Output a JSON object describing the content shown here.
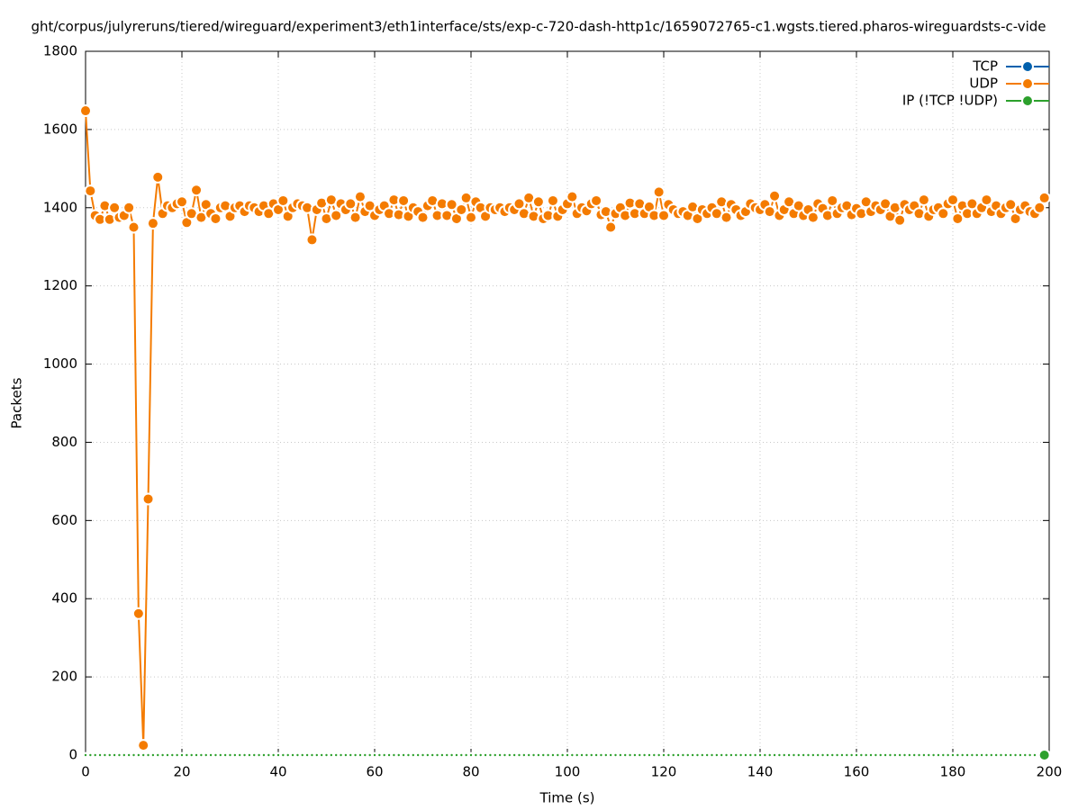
{
  "chart_data": {
    "type": "line",
    "title": "ght/corpus/julyreruns/tiered/wireguard/experiment3/eth1interface/sts/exp-c-720-dash-http1c/1659072765-c1.wgsts.tiered.pharos-wireguardsts-c-vide",
    "x_label": "Time (s)",
    "y_label": "Packets",
    "xlim": [
      0,
      200
    ],
    "ylim": [
      0,
      1800
    ],
    "xticks": [
      0,
      20,
      40,
      60,
      80,
      100,
      120,
      140,
      160,
      180,
      200
    ],
    "yticks": [
      0,
      200,
      400,
      600,
      800,
      1000,
      1200,
      1400,
      1600,
      1800
    ],
    "grid": true,
    "legend": "top-right",
    "x": [
      0,
      1,
      2,
      3,
      4,
      5,
      6,
      7,
      8,
      9,
      10,
      11,
      12,
      13,
      14,
      15,
      16,
      17,
      18,
      19,
      20,
      21,
      22,
      23,
      24,
      25,
      26,
      27,
      28,
      29,
      30,
      31,
      32,
      33,
      34,
      35,
      36,
      37,
      38,
      39,
      40,
      41,
      42,
      43,
      44,
      45,
      46,
      47,
      48,
      49,
      50,
      51,
      52,
      53,
      54,
      55,
      56,
      57,
      58,
      59,
      60,
      61,
      62,
      63,
      64,
      65,
      66,
      67,
      68,
      69,
      70,
      71,
      72,
      73,
      74,
      75,
      76,
      77,
      78,
      79,
      80,
      81,
      82,
      83,
      84,
      85,
      86,
      87,
      88,
      89,
      90,
      91,
      92,
      93,
      94,
      95,
      96,
      97,
      98,
      99,
      100,
      101,
      102,
      103,
      104,
      105,
      106,
      107,
      108,
      109,
      110,
      111,
      112,
      113,
      114,
      115,
      116,
      117,
      118,
      119,
      120,
      121,
      122,
      123,
      124,
      125,
      126,
      127,
      128,
      129,
      130,
      131,
      132,
      133,
      134,
      135,
      136,
      137,
      138,
      139,
      140,
      141,
      142,
      143,
      144,
      145,
      146,
      147,
      148,
      149,
      150,
      151,
      152,
      153,
      154,
      155,
      156,
      157,
      158,
      159,
      160,
      161,
      162,
      163,
      164,
      165,
      166,
      167,
      168,
      169,
      170,
      171,
      172,
      173,
      174,
      175,
      176,
      177,
      178,
      179,
      180,
      181,
      182,
      183,
      184,
      185,
      186,
      187,
      188,
      189,
      190,
      191,
      192,
      193,
      194,
      195,
      196,
      197,
      198,
      199
    ],
    "series": [
      {
        "name": "TCP",
        "color": "#0060ad",
        "values": [
          0,
          0,
          0,
          0,
          0,
          0,
          0,
          0,
          0,
          0,
          0,
          0,
          0,
          0,
          0,
          0,
          0,
          0,
          0,
          0,
          0,
          0,
          0,
          0,
          0,
          0,
          0,
          0,
          0,
          0,
          0,
          0,
          0,
          0,
          0,
          0,
          0,
          0,
          0,
          0,
          0,
          0,
          0,
          0,
          0,
          0,
          0,
          0,
          0,
          0,
          0,
          0,
          0,
          0,
          0,
          0,
          0,
          0,
          0,
          0,
          0,
          0,
          0,
          0,
          0,
          0,
          0,
          0,
          0,
          0,
          0,
          0,
          0,
          0,
          0,
          0,
          0,
          0,
          0,
          0,
          0,
          0,
          0,
          0,
          0,
          0,
          0,
          0,
          0,
          0,
          0,
          0,
          0,
          0,
          0,
          0,
          0,
          0,
          0,
          0,
          0,
          0,
          0,
          0,
          0,
          0,
          0,
          0,
          0,
          0,
          0,
          0,
          0,
          0,
          0,
          0,
          0,
          0,
          0,
          0,
          0,
          0,
          0,
          0,
          0,
          0,
          0,
          0,
          0,
          0,
          0,
          0,
          0,
          0,
          0,
          0,
          0,
          0,
          0,
          0,
          0,
          0,
          0,
          0,
          0,
          0,
          0,
          0,
          0,
          0,
          0,
          0,
          0,
          0,
          0,
          0,
          0,
          0,
          0,
          0,
          0,
          0,
          0,
          0,
          0,
          0,
          0,
          0,
          0,
          0,
          0,
          0,
          0,
          0,
          0,
          0,
          0,
          0,
          0,
          0,
          0,
          0,
          0,
          0,
          0,
          0,
          0,
          0,
          0,
          0,
          0,
          0,
          0,
          0,
          0,
          0,
          0,
          0,
          0,
          0
        ]
      },
      {
        "name": "UDP",
        "color": "#f47b00",
        "values": [
          1648,
          1443,
          1380,
          1370,
          1405,
          1370,
          1400,
          1375,
          1380,
          1400,
          1350,
          362,
          25,
          655,
          1360,
          1478,
          1385,
          1405,
          1400,
          1410,
          1415,
          1362,
          1385,
          1445,
          1375,
          1408,
          1385,
          1372,
          1400,
          1405,
          1378,
          1400,
          1405,
          1390,
          1405,
          1400,
          1390,
          1405,
          1385,
          1410,
          1395,
          1418,
          1378,
          1400,
          1410,
          1405,
          1400,
          1318,
          1395,
          1412,
          1372,
          1420,
          1380,
          1410,
          1395,
          1410,
          1375,
          1428,
          1390,
          1405,
          1380,
          1395,
          1405,
          1385,
          1420,
          1382,
          1418,
          1378,
          1400,
          1390,
          1375,
          1405,
          1418,
          1380,
          1410,
          1380,
          1408,
          1372,
          1395,
          1425,
          1375,
          1415,
          1400,
          1378,
          1400,
          1395,
          1400,
          1390,
          1400,
          1395,
          1410,
          1385,
          1425,
          1378,
          1415,
          1372,
          1380,
          1418,
          1378,
          1395,
          1410,
          1428,
          1385,
          1400,
          1392,
          1410,
          1418,
          1382,
          1390,
          1350,
          1385,
          1400,
          1380,
          1412,
          1385,
          1410,
          1385,
          1402,
          1380,
          1440,
          1380,
          1408,
          1395,
          1385,
          1390,
          1380,
          1402,
          1372,
          1395,
          1385,
          1400,
          1385,
          1415,
          1375,
          1408,
          1395,
          1380,
          1390,
          1410,
          1400,
          1395,
          1408,
          1390,
          1430,
          1380,
          1395,
          1415,
          1385,
          1405,
          1380,
          1395,
          1375,
          1410,
          1398,
          1380,
          1418,
          1385,
          1400,
          1405,
          1382,
          1398,
          1385,
          1415,
          1390,
          1405,
          1395,
          1410,
          1378,
          1400,
          1368,
          1408,
          1395,
          1405,
          1385,
          1420,
          1378,
          1395,
          1400,
          1385,
          1410,
          1420,
          1372,
          1405,
          1385,
          1410,
          1385,
          1400,
          1420,
          1390,
          1405,
          1385,
          1400,
          1408,
          1372,
          1395,
          1405,
          1390,
          1385,
          1400,
          1425
        ]
      },
      {
        "name": "IP (!TCP  !UDP)",
        "color": "#2ca02c",
        "values": [
          0,
          0,
          0,
          0,
          0,
          0,
          0,
          0,
          0,
          0,
          0,
          0,
          0,
          0,
          0,
          0,
          0,
          0,
          0,
          0,
          0,
          0,
          0,
          0,
          0,
          0,
          0,
          0,
          0,
          0,
          0,
          0,
          0,
          0,
          0,
          0,
          0,
          0,
          0,
          0,
          0,
          0,
          0,
          0,
          0,
          0,
          0,
          0,
          0,
          0,
          0,
          0,
          0,
          0,
          0,
          0,
          0,
          0,
          0,
          0,
          0,
          0,
          0,
          0,
          0,
          0,
          0,
          0,
          0,
          0,
          0,
          0,
          0,
          0,
          0,
          0,
          0,
          0,
          0,
          0,
          0,
          0,
          0,
          0,
          0,
          0,
          0,
          0,
          0,
          0,
          0,
          0,
          0,
          0,
          0,
          0,
          0,
          0,
          0,
          0,
          0,
          0,
          0,
          0,
          0,
          0,
          0,
          0,
          0,
          0,
          0,
          0,
          0,
          0,
          0,
          0,
          0,
          0,
          0,
          0,
          0,
          0,
          0,
          0,
          0,
          0,
          0,
          0,
          0,
          0,
          0,
          0,
          0,
          0,
          0,
          0,
          0,
          0,
          0,
          0,
          0,
          0,
          0,
          0,
          0,
          0,
          0,
          0,
          0,
          0,
          0,
          0,
          0,
          0,
          0,
          0,
          0,
          0,
          0,
          0,
          0,
          0,
          0,
          0,
          0,
          0,
          0,
          0,
          0,
          0,
          0,
          0,
          0,
          0,
          0,
          0,
          0,
          0,
          0,
          0,
          0,
          0,
          0,
          0,
          0,
          0,
          0,
          0,
          0,
          0,
          0,
          0,
          0,
          0,
          0,
          0,
          0,
          0,
          0,
          0
        ]
      }
    ]
  }
}
